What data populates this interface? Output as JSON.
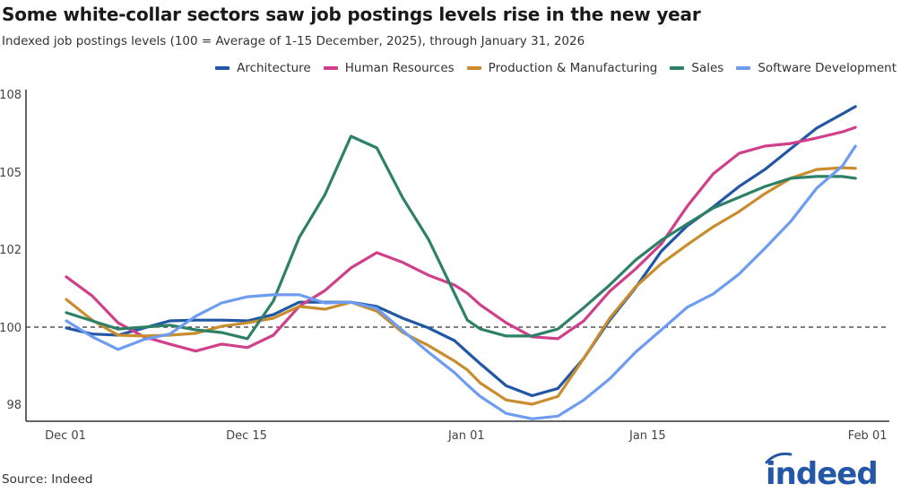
{
  "title": "Some white-collar sectors saw job postings levels rise in the new year",
  "subtitle": "Indexed job postings levels (100 = Average of 1-15 December, 2025), through January 31, 2026",
  "source": "Source: Indeed",
  "logo_text": "indeed",
  "chart_data": {
    "type": "line",
    "title": "Some white-collar sectors saw job postings levels rise in the new year",
    "subtitle": "Indexed job postings levels (100 = Average of 1-15 December, 2025), through January 31, 2026",
    "xlabel": "",
    "ylabel": "",
    "legend_position": "top-right",
    "grid": false,
    "reference_line": 100,
    "yticks": [
      98,
      100,
      102,
      105,
      108
    ],
    "ytick_labels": [
      "98",
      "100",
      "102",
      "105",
      "108"
    ],
    "xticks": [
      "2025-12-01",
      "2025-12-15",
      "2026-01-01",
      "2026-01-15",
      "2026-02-01"
    ],
    "xtick_labels": [
      "Dec 01",
      "Dec 15",
      "Jan 01",
      "Jan 15",
      "Feb 01"
    ],
    "x": [
      "2025-12-01",
      "2025-12-03",
      "2025-12-05",
      "2025-12-07",
      "2025-12-09",
      "2025-12-11",
      "2025-12-13",
      "2025-12-15",
      "2025-12-17",
      "2025-12-19",
      "2025-12-21",
      "2025-12-23",
      "2025-12-25",
      "2025-12-27",
      "2025-12-29",
      "2025-12-31",
      "2026-01-01",
      "2026-01-02",
      "2026-01-04",
      "2026-01-06",
      "2026-01-08",
      "2026-01-10",
      "2026-01-12",
      "2026-01-14",
      "2026-01-16",
      "2026-01-18",
      "2026-01-20",
      "2026-01-22",
      "2026-01-24",
      "2026-01-26",
      "2026-01-28",
      "2026-01-30",
      "2026-01-31"
    ],
    "series": [
      {
        "name": "Architecture",
        "color": "#2157a4",
        "values": [
          99.98,
          99.82,
          99.79,
          99.98,
          100.16,
          100.18,
          100.18,
          100.16,
          100.32,
          100.64,
          100.64,
          100.64,
          100.53,
          100.23,
          99.98,
          99.65,
          99.35,
          99.05,
          98.48,
          98.22,
          98.41,
          99.19,
          100.18,
          101.01,
          101.95,
          102.91,
          103.64,
          104.44,
          105.1,
          105.9,
          106.69,
          107.24,
          107.52
        ]
      },
      {
        "name": "Human Resources",
        "color": "#d0408a",
        "values": [
          101.29,
          100.8,
          100.11,
          99.75,
          99.56,
          99.38,
          99.56,
          99.47,
          99.79,
          100.53,
          100.94,
          101.52,
          101.91,
          101.66,
          101.33,
          101.08,
          100.87,
          100.57,
          100.11,
          99.75,
          99.7,
          100.16,
          100.92,
          101.49,
          102.21,
          103.67,
          104.93,
          105.72,
          106.0,
          106.1,
          106.31,
          106.55,
          106.72
        ]
      },
      {
        "name": "Production & Manufacturing",
        "color": "#c98d2e",
        "values": [
          100.71,
          100.18,
          99.79,
          99.77,
          99.79,
          99.84,
          100.02,
          100.11,
          100.23,
          100.53,
          100.46,
          100.64,
          100.41,
          99.86,
          99.52,
          99.12,
          98.89,
          98.55,
          98.11,
          98.0,
          98.2,
          99.19,
          100.23,
          101.03,
          101.63,
          102.17,
          102.87,
          103.46,
          104.16,
          104.76,
          105.1,
          105.17,
          105.14
        ]
      },
      {
        "name": "Sales",
        "color": "#2e8068",
        "values": [
          100.37,
          100.16,
          99.95,
          100.0,
          100.05,
          99.93,
          99.86,
          99.7,
          100.67,
          102.45,
          104.13,
          106.38,
          105.93,
          104.0,
          102.38,
          100.87,
          100.18,
          99.95,
          99.77,
          99.77,
          99.95,
          100.5,
          101.08,
          101.72,
          102.35,
          102.98,
          103.6,
          104.02,
          104.44,
          104.76,
          104.83,
          104.83,
          104.76
        ]
      },
      {
        "name": "Software Development",
        "color": "#6d9cf0",
        "values": [
          100.16,
          99.75,
          99.42,
          99.68,
          99.82,
          100.28,
          100.62,
          100.78,
          100.83,
          100.83,
          100.62,
          100.64,
          100.48,
          99.91,
          99.35,
          98.82,
          98.5,
          98.2,
          97.76,
          97.62,
          97.69,
          98.11,
          98.66,
          99.35,
          99.93,
          100.51,
          100.85,
          101.36,
          102.03,
          103.08,
          104.37,
          105.24,
          106.0
        ]
      }
    ]
  }
}
